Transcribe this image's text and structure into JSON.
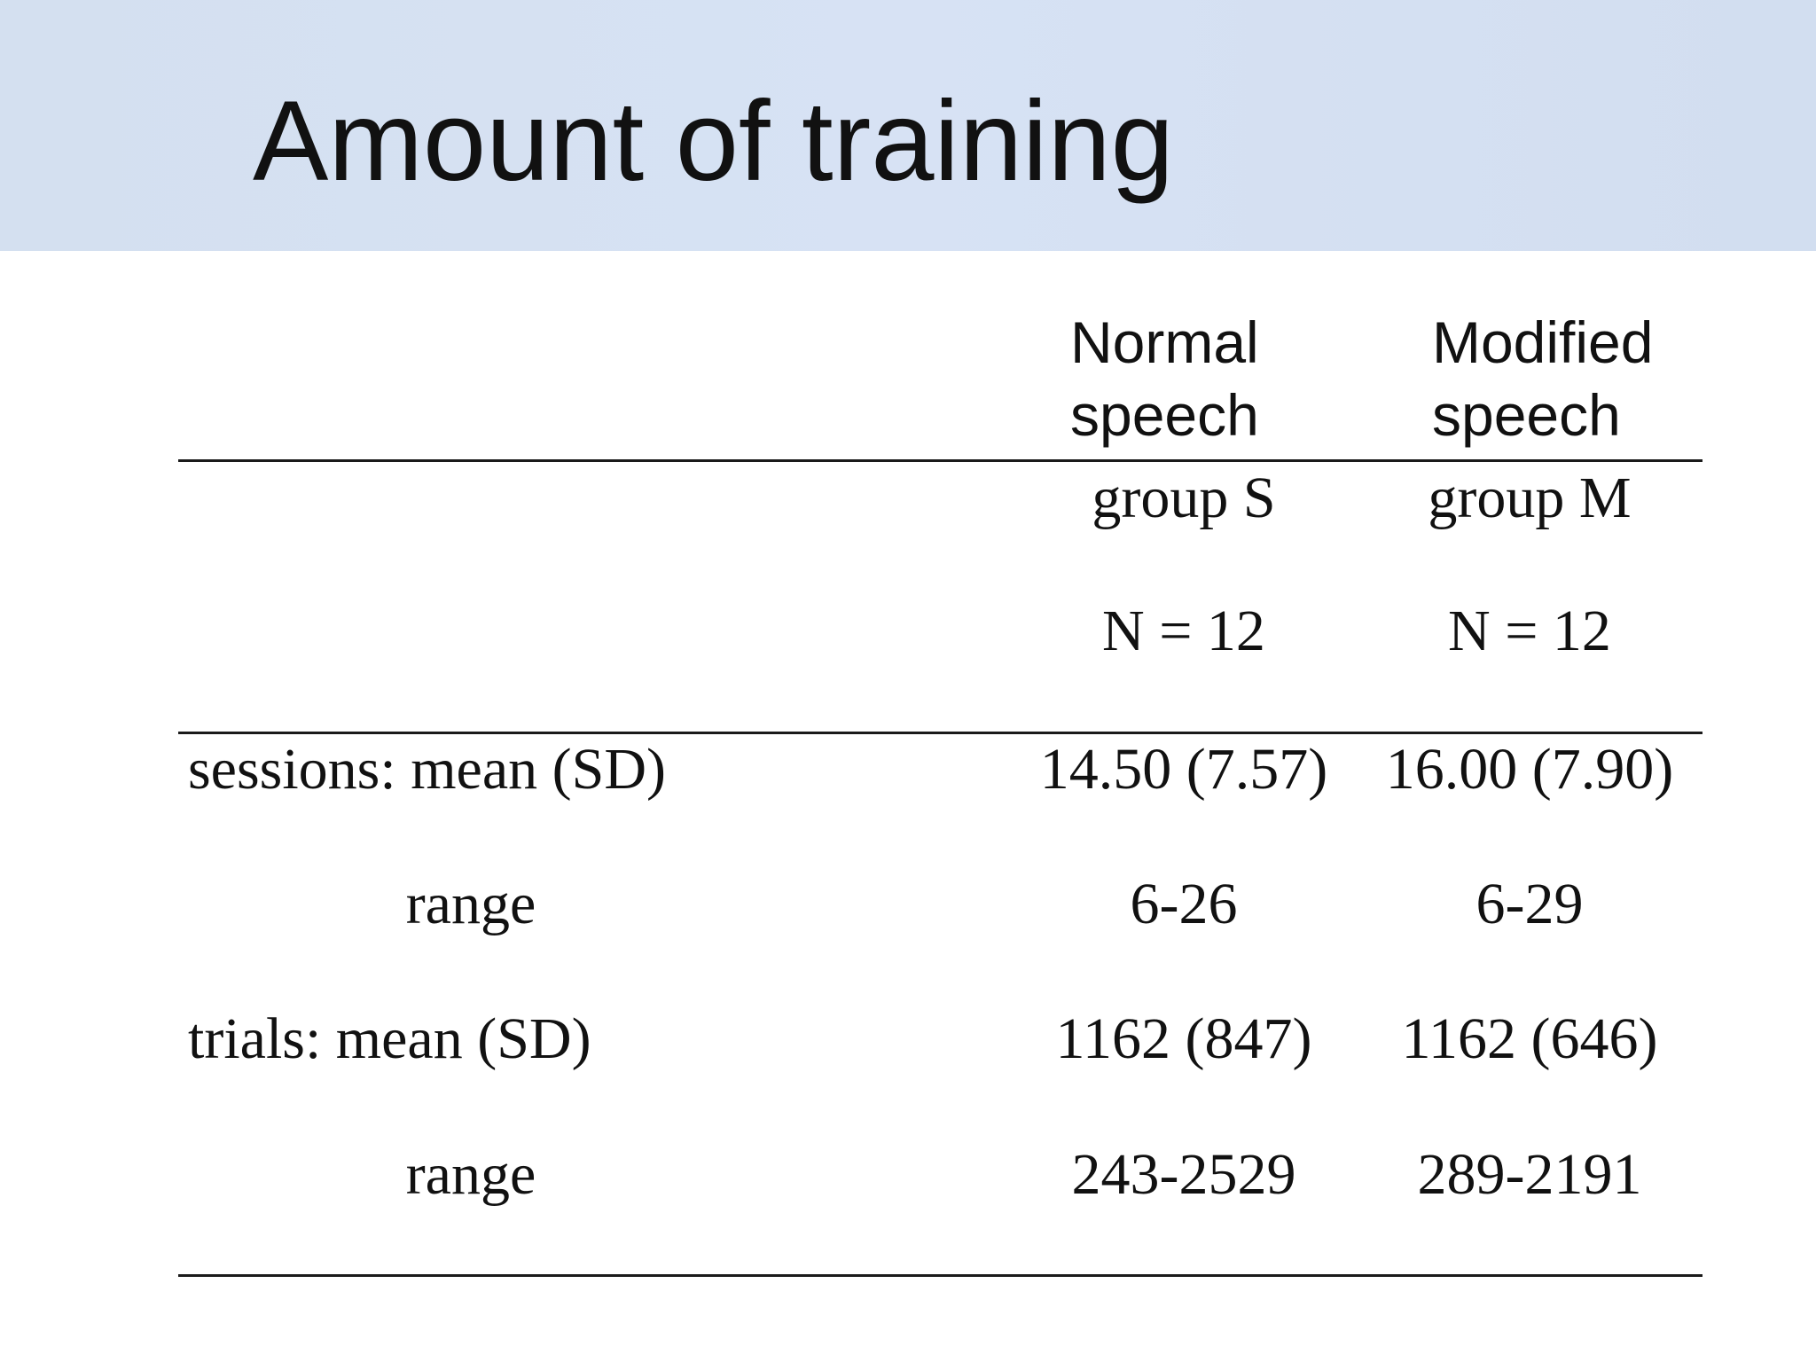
{
  "slide": {
    "title": "Amount of training"
  },
  "table": {
    "columns": [
      {
        "header_line1": "Normal",
        "header_line2": "speech",
        "group": "group S",
        "n": "N = 12"
      },
      {
        "header_line1": "Modified",
        "header_line2": "speech",
        "group": "group M",
        "n": "N = 12"
      }
    ],
    "rows": [
      {
        "label": "sessions: mean (SD)",
        "values": [
          "14.50 (7.57)",
          "16.00 (7.90)"
        ]
      },
      {
        "label": "range",
        "values": [
          "6-26",
          "6-29"
        ]
      },
      {
        "label": "trials: mean (SD)",
        "values": [
          "1162 (847)",
          "1162 (646)"
        ]
      },
      {
        "label": "range",
        "values": [
          "243-2529",
          "289-2191"
        ]
      }
    ]
  }
}
